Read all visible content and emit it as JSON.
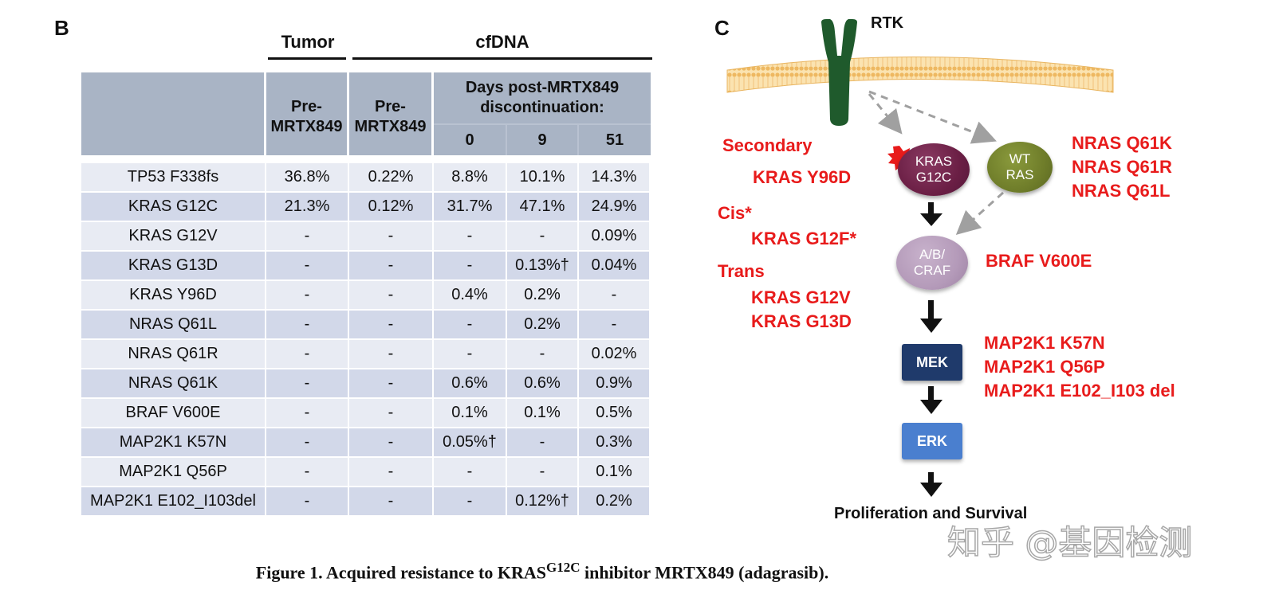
{
  "panel_b": {
    "letter": "B",
    "tumor_label": "Tumor",
    "cfdna_label": "cfDNA",
    "col_pre_tumor": "Pre-\nMRTX849",
    "col_pre_cfdna": "Pre-\nMRTX849",
    "days_header": "Days post-MRTX849\ndiscontinuation:",
    "day_cols": [
      "0",
      "9",
      "51"
    ],
    "rows": [
      {
        "gene": "TP53 F338fs",
        "tumor_pre": "36.8%",
        "cf_pre": "0.22%",
        "d0": "8.8%",
        "d9": "10.1%",
        "d51": "14.3%"
      },
      {
        "gene": "KRAS G12C",
        "tumor_pre": "21.3%",
        "cf_pre": "0.12%",
        "d0": "31.7%",
        "d9": "47.1%",
        "d51": "24.9%"
      },
      {
        "gene": "KRAS G12V",
        "tumor_pre": "-",
        "cf_pre": "-",
        "d0": "-",
        "d9": "-",
        "d51": "0.09%"
      },
      {
        "gene": "KRAS G13D",
        "tumor_pre": "-",
        "cf_pre": "-",
        "d0": "-",
        "d9": "0.13%†",
        "d51": "0.04%"
      },
      {
        "gene": "KRAS Y96D",
        "tumor_pre": "-",
        "cf_pre": "-",
        "d0": "0.4%",
        "d9": "0.2%",
        "d51": "-"
      },
      {
        "gene": "NRAS Q61L",
        "tumor_pre": "-",
        "cf_pre": "-",
        "d0": "-",
        "d9": "0.2%",
        "d51": "-"
      },
      {
        "gene": "NRAS Q61R",
        "tumor_pre": "-",
        "cf_pre": "-",
        "d0": "-",
        "d9": "-",
        "d51": "0.02%"
      },
      {
        "gene": "NRAS Q61K",
        "tumor_pre": "-",
        "cf_pre": "-",
        "d0": "0.6%",
        "d9": "0.6%",
        "d51": "0.9%"
      },
      {
        "gene": "BRAF V600E",
        "tumor_pre": "-",
        "cf_pre": "-",
        "d0": "0.1%",
        "d9": "0.1%",
        "d51": "0.5%"
      },
      {
        "gene": "MAP2K1 K57N",
        "tumor_pre": "-",
        "cf_pre": "-",
        "d0": "0.05%†",
        "d9": "-",
        "d51": "0.3%"
      },
      {
        "gene": "MAP2K1 Q56P",
        "tumor_pre": "-",
        "cf_pre": "-",
        "d0": "-",
        "d9": "-",
        "d51": "0.1%"
      },
      {
        "gene": "MAP2K1 E102_I103del",
        "tumor_pre": "-",
        "cf_pre": "-",
        "d0": "-",
        "d9": "0.12%†",
        "d51": "0.2%"
      }
    ]
  },
  "panel_c": {
    "letter": "C",
    "rtk": "RTK",
    "kras_node": "KRAS\nG12C",
    "wt_node": "WT\nRAS",
    "raf_node": "A/B/\nCRAF",
    "mek": "MEK",
    "erk": "ERK",
    "outcome": "Proliferation and Survival",
    "secondary_label": "Secondary",
    "secondary_mut": "KRAS Y96D",
    "cis_label": "Cis*",
    "cis_mut": "KRAS G12F*",
    "trans_label": "Trans",
    "trans_muts": [
      "KRAS G12V",
      "KRAS G13D"
    ],
    "nras_muts": [
      "NRAS Q61K",
      "NRAS Q61R",
      "NRAS Q61L"
    ],
    "braf_mut": "BRAF V600E",
    "map2k1_muts": [
      "MAP2K1 K57N",
      "MAP2K1 Q56P",
      "MAP2K1 E102_I103 del"
    ],
    "colors": {
      "red": "#e81b1b",
      "membrane": "#f3c77a",
      "rtk": "#1f5a2c",
      "kras": "#6b1f45",
      "wt": "#6f7d2a",
      "raf": "#b49ab9",
      "mek": "#1f3a6b",
      "erk": "#4a7fcf"
    }
  },
  "caption": {
    "prefix": "Figure 1. Acquired resistance to KRAS",
    "superscript": "G12C",
    "suffix": " inhibitor MRTX849 (adagrasib)."
  },
  "watermark": "知乎 @基因检测"
}
